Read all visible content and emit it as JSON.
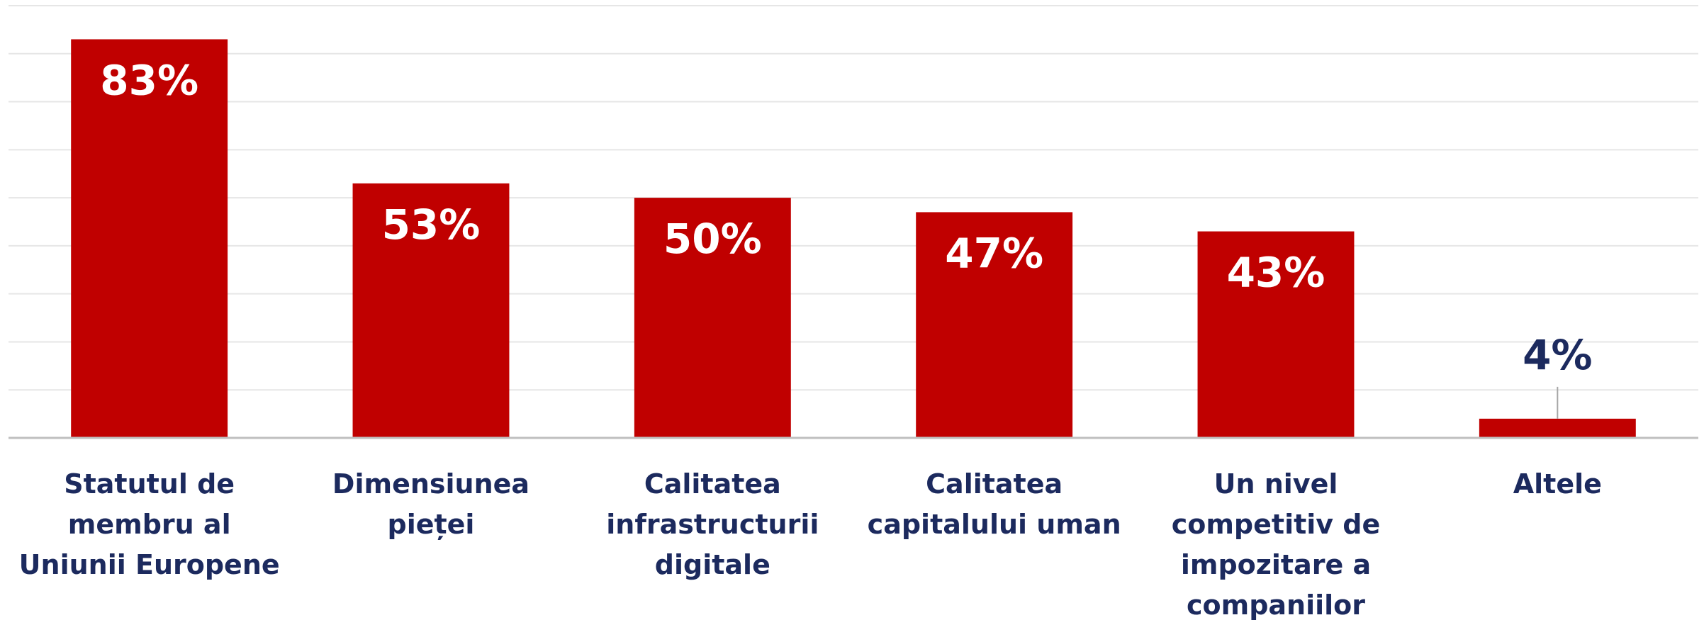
{
  "chart_data": {
    "type": "bar",
    "categories": [
      "Statutul de membru al Uniunii Europene",
      "Dimensiunea pieței",
      "Calitatea infrastructurii digitale",
      "Calitatea capitalului uman",
      "Un nivel competitiv de impozitare a companiilor",
      "Altele"
    ],
    "values": [
      83,
      53,
      50,
      47,
      43,
      4
    ],
    "value_labels": [
      "83%",
      "53%",
      "50%",
      "47%",
      "43%",
      "4%"
    ],
    "color": "#c00000",
    "ylim": [
      0,
      90
    ],
    "yticks": [
      0,
      10,
      20,
      30,
      40,
      50,
      60,
      70,
      80,
      90
    ],
    "grid": true
  }
}
